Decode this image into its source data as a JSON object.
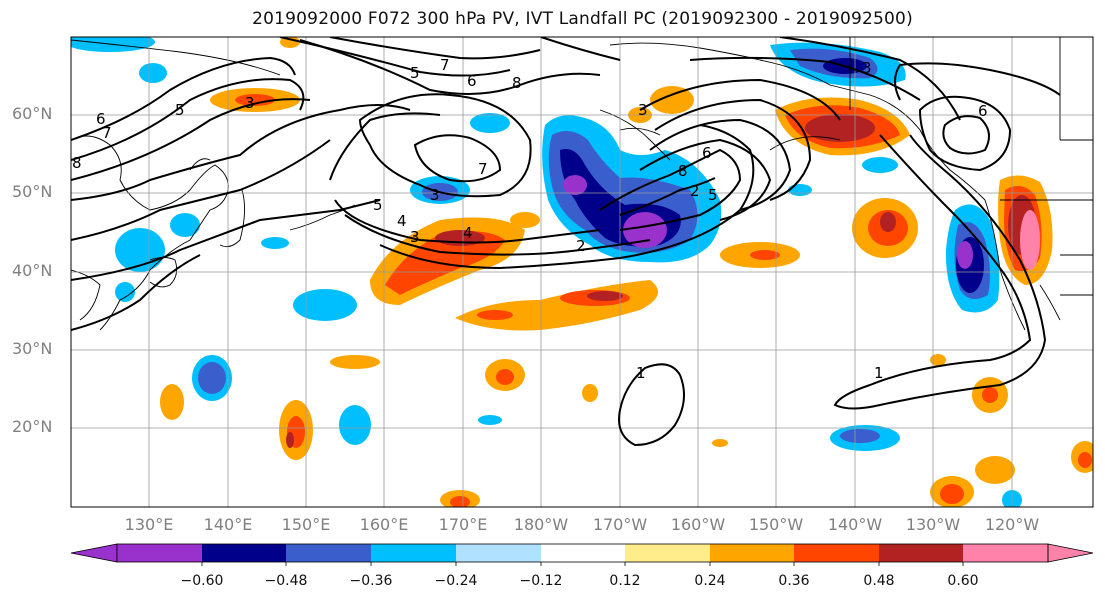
{
  "title": "2019092000 F072 300 hPa PV, IVT Landfall PC (2019092300 - 2019092500)",
  "map": {
    "lat_labels": [
      "60°N",
      "50°N",
      "40°N",
      "30°N",
      "20°N"
    ],
    "lon_labels": [
      "130°E",
      "140°E",
      "150°E",
      "160°E",
      "170°E",
      "180°W",
      "170°W",
      "160°W",
      "150°W",
      "140°W",
      "130°W",
      "120°W"
    ],
    "contour_labels": [
      "6",
      "7",
      "8",
      "5",
      "3",
      "7",
      "6",
      "5",
      "8",
      "3",
      "7",
      "5",
      "4",
      "3",
      "4",
      "2",
      "3",
      "8",
      "6",
      "5",
      "2",
      "3",
      "6",
      "1",
      "1"
    ]
  },
  "colorbar": {
    "colors": [
      "#9932cc",
      "#00008b",
      "#3a5fcd",
      "#00bfff",
      "#b0e2ff",
      "#ffffff",
      "#ffec8b",
      "#ffa500",
      "#ff4500",
      "#b22222",
      "#ff82ab"
    ],
    "tick_labels": [
      "−0.60",
      "−0.48",
      "−0.36",
      "−0.24",
      "−0.12",
      "0.12",
      "0.24",
      "0.36",
      "0.48",
      "0.60"
    ]
  }
}
